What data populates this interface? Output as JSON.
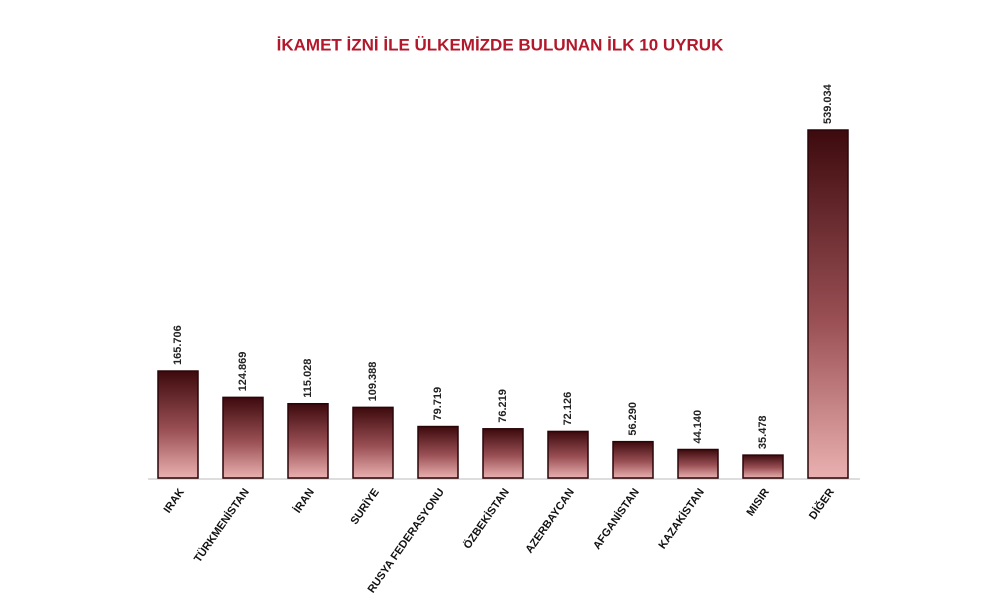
{
  "chart_data": {
    "type": "bar",
    "title": "İKAMET İZNİ İLE ÜLKEMİZDE BULUNAN İLK 10 UYRUK",
    "categories": [
      "IRAK",
      "TÜRKMENİSTAN",
      "İRAN",
      "SURİYE",
      "RUSYA FEDERASYONU",
      "ÖZBEKİSTAN",
      "AZERBAYCAN",
      "AFGANİSTAN",
      "KAZAKİSTAN",
      "MISIR",
      "DİĞER"
    ],
    "values": [
      165706,
      124869,
      115028,
      109388,
      79719,
      76219,
      72126,
      56290,
      44140,
      35478,
      539034
    ],
    "value_labels": [
      "165.706",
      "124.869",
      "115.028",
      "109.388",
      "79.719",
      "76.219",
      "72.126",
      "56.290",
      "44.140",
      "35.478",
      "539.034"
    ],
    "color": "#3d0a0d"
  }
}
